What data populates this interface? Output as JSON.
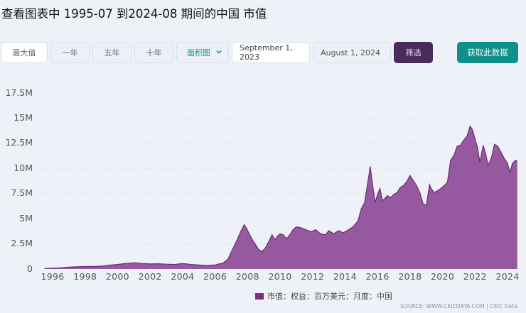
{
  "title": "查看图表中 1995-07 到2024-08 期间的中国 市值",
  "toolbar": {
    "range_buttons": [
      {
        "label": "最大值",
        "active": true
      },
      {
        "label": "一年",
        "active": false
      },
      {
        "label": "五年",
        "active": false
      },
      {
        "label": "十年",
        "active": false
      }
    ],
    "chart_type_select": {
      "value": "面积图",
      "icon": "chevron-down-icon"
    },
    "date_from": "September 1, 2023",
    "date_to": "August 1, 2024",
    "filter_label": "筛选",
    "get_data_label": "获取此数据"
  },
  "colors": {
    "area_fill": "#96599f",
    "area_line": "#6a2b74",
    "filter_button": "#472b5c",
    "get_data_button": "#0f8f8a",
    "background": "#eef2f8"
  },
  "legend": {
    "label": "市值：权益：百万美元：月度：中国"
  },
  "source": "SOURCE: WWW.CEICDATA.COM | CEIC Data",
  "chart_data": {
    "type": "area",
    "title": "查看图表中 1995-07 到2024-08 期间的中国 市值",
    "xlabel": "",
    "ylabel": "",
    "ylim": [
      0,
      17500000
    ],
    "y_ticks": [
      "0",
      "2.5M",
      "5M",
      "7.5M",
      "10M",
      "12.5M",
      "15M",
      "17.5M"
    ],
    "x_ticks": [
      "1996",
      "1998",
      "2000",
      "2002",
      "2004",
      "2006",
      "2008",
      "2010",
      "2012",
      "2014",
      "2016",
      "2018",
      "2020",
      "2022",
      "2024"
    ],
    "grid": true,
    "legend_position": "bottom",
    "series": [
      {
        "name": "市值：权益：百万美元：月度：中国",
        "unit": "M USD (millions, axis in M = millions of millions)",
        "x": [
          1995.5,
          1996.0,
          1996.5,
          1997.0,
          1997.5,
          1998.0,
          1998.5,
          1999.0,
          1999.5,
          2000.0,
          2000.5,
          2001.0,
          2001.5,
          2002.0,
          2002.5,
          2003.0,
          2003.5,
          2004.0,
          2004.5,
          2005.0,
          2005.5,
          2006.0,
          2006.5,
          2006.8,
          2007.0,
          2007.3,
          2007.6,
          2007.8,
          2007.95,
          2008.1,
          2008.3,
          2008.5,
          2008.7,
          2008.9,
          2009.1,
          2009.3,
          2009.5,
          2009.7,
          2009.8,
          2010.0,
          2010.2,
          2010.4,
          2010.6,
          2010.8,
          2011.0,
          2011.3,
          2011.6,
          2011.9,
          2012.2,
          2012.5,
          2012.8,
          2013.0,
          2013.3,
          2013.6,
          2013.9,
          2014.2,
          2014.5,
          2014.8,
          2015.0,
          2015.2,
          2015.4,
          2015.55,
          2015.7,
          2015.85,
          2016.0,
          2016.15,
          2016.3,
          2016.45,
          2016.6,
          2016.8,
          2017.0,
          2017.2,
          2017.4,
          2017.6,
          2017.8,
          2018.0,
          2018.2,
          2018.4,
          2018.6,
          2018.8,
          2019.0,
          2019.2,
          2019.3,
          2019.5,
          2019.7,
          2019.9,
          2020.1,
          2020.3,
          2020.5,
          2020.7,
          2020.9,
          2021.1,
          2021.3,
          2021.5,
          2021.7,
          2021.85,
          2022.0,
          2022.15,
          2022.3,
          2022.5,
          2022.65,
          2022.8,
          2023.0,
          2023.2,
          2023.4,
          2023.6,
          2023.8,
          2024.0,
          2024.15,
          2024.3,
          2024.5,
          2024.6
        ],
        "values": [
          0.05,
          0.08,
          0.12,
          0.18,
          0.22,
          0.25,
          0.25,
          0.28,
          0.38,
          0.45,
          0.55,
          0.62,
          0.55,
          0.5,
          0.52,
          0.48,
          0.45,
          0.55,
          0.45,
          0.4,
          0.35,
          0.4,
          0.6,
          1.0,
          1.7,
          2.7,
          3.8,
          4.4,
          4.0,
          3.5,
          2.9,
          2.4,
          1.9,
          1.75,
          2.1,
          2.7,
          3.4,
          2.9,
          3.2,
          3.5,
          3.4,
          3.0,
          3.4,
          3.9,
          4.2,
          4.1,
          3.9,
          3.7,
          3.9,
          3.5,
          3.4,
          3.8,
          3.5,
          3.8,
          3.6,
          3.9,
          4.2,
          4.8,
          6.0,
          6.6,
          8.6,
          10.2,
          8.3,
          6.6,
          7.4,
          8.0,
          6.8,
          7.0,
          7.3,
          7.1,
          7.4,
          7.6,
          8.1,
          8.3,
          8.7,
          9.3,
          8.8,
          8.3,
          7.6,
          6.5,
          6.3,
          8.4,
          8.0,
          7.6,
          7.8,
          8.0,
          8.3,
          8.6,
          10.8,
          11.3,
          12.2,
          12.3,
          12.8,
          13.2,
          14.2,
          13.8,
          12.9,
          12.1,
          10.6,
          12.3,
          11.5,
          10.3,
          11.0,
          12.4,
          12.2,
          11.6,
          11.0,
          10.5,
          9.6,
          10.5,
          10.8,
          10.7
        ]
      }
    ]
  }
}
